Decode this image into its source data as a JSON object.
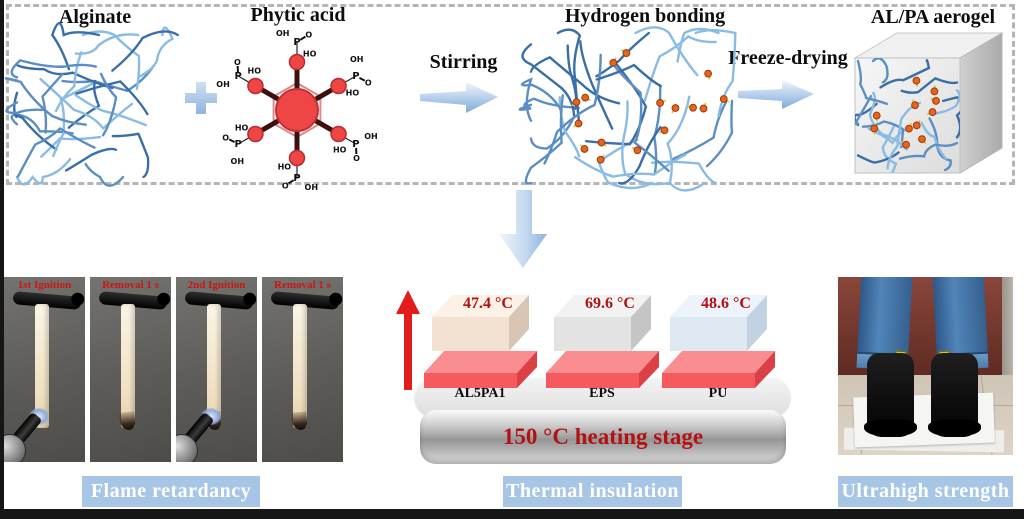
{
  "figure": {
    "scheme": {
      "alginate": {
        "title": "Alginate"
      },
      "plus_icon": "+",
      "phytic_acid": {
        "title": "Phytic acid",
        "atoms": {
          "p": "P",
          "o": "O",
          "oh": "OH",
          "ho": "HO"
        }
      },
      "stirring_label": "Stirring",
      "hydrogen_bonding": {
        "title": "Hydrogen bonding"
      },
      "freeze_drying_label": "Freeze-drying",
      "aerogel": {
        "title": "AL/PA aerogel"
      }
    },
    "flame": {
      "frames": [
        {
          "caption": "1st Ignition",
          "torch": true,
          "charred": false
        },
        {
          "caption": "Removal 1 s",
          "torch": false,
          "charred": true
        },
        {
          "caption": "2nd Ignition",
          "torch": true,
          "charred": true
        },
        {
          "caption": "Removal 1 s",
          "torch": false,
          "charred": true
        }
      ],
      "caption_color": "#d01414"
    },
    "thermal": {
      "samples": [
        {
          "name": "AL5PA1",
          "temp": "47.4 °C",
          "front": "#f3e2d2",
          "top": "#fcf1e6",
          "side": "#d9c5b3"
        },
        {
          "name": "EPS",
          "temp": "69.6 °C",
          "front": "#e3e3e3",
          "top": "#f2f2f2",
          "side": "#c5c5c5"
        },
        {
          "name": "PU",
          "temp": "48.6 °C",
          "front": "#dde8f2",
          "top": "#ecf3fa",
          "side": "#c1d2e2"
        }
      ],
      "stage_label": "150 °C heating stage",
      "temp_color": "#b31212",
      "stage_color": "#b31212"
    },
    "captions": [
      {
        "text": "Flame retardancy"
      },
      {
        "text": "Thermal insulation"
      },
      {
        "text": "Ultrahigh strength"
      }
    ],
    "colors": {
      "caption_bg": "#a7c6e6",
      "accent_blue": "#7fa8d9",
      "network_blues": [
        "#8abbe4",
        "#5b8fc4",
        "#3a6ea8"
      ],
      "dot_orange": "#e8641e",
      "red_arrow": "#e21b1b",
      "molecule_red": "#ee4545"
    }
  }
}
